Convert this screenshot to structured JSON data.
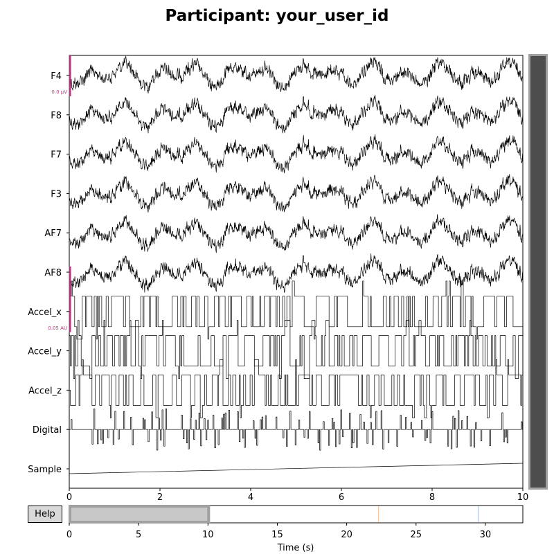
{
  "title": "Participant: your_user_id",
  "help_label": "Help",
  "chart_data": {
    "type": "line",
    "subtype": "multichannel-time-series",
    "channels": [
      "F4",
      "F8",
      "F7",
      "F3",
      "AF7",
      "AF8",
      "Accel_x",
      "Accel_y",
      "Accel_z",
      "Digital",
      "Sample"
    ],
    "scale_bars": [
      {
        "channel": "F4",
        "label": "0.0 µV"
      },
      {
        "channel": "Accel_x",
        "label": "0.05 AU"
      }
    ],
    "x_view_range": [
      0,
      10
    ],
    "x_ticks": [
      0,
      2,
      4,
      6,
      8,
      10
    ],
    "overview": {
      "x_range": [
        0,
        32.7
      ],
      "x_ticks": [
        0,
        5,
        10,
        15,
        20,
        25,
        30
      ],
      "xlabel": "Time (s)",
      "view_window": [
        0,
        10
      ],
      "event_markers": [
        {
          "x": 22.3,
          "color": "#f5c09a"
        },
        {
          "x": 29.5,
          "color": "#a9c4f0"
        }
      ]
    },
    "colors": {
      "trace": "#000000",
      "scale_bar": "#b0357a",
      "scrollbar_thumb": "#4d4d4d",
      "scrollbar_border": "#a0a0a0",
      "overview_window": "#c8c8c8"
    }
  }
}
